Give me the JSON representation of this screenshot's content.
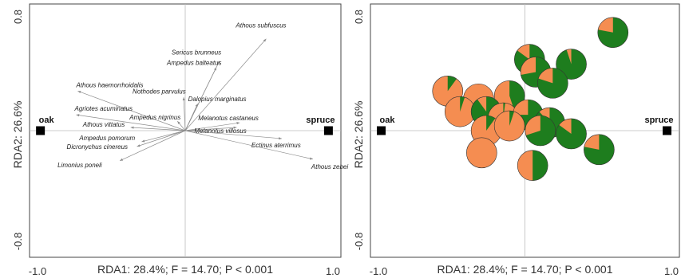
{
  "colors": {
    "oak": "#F58D51",
    "spruce": "#1E7D1E",
    "frame": "#444444",
    "ref": "#BDBDBD",
    "arrow": "#8C8C8C"
  },
  "chart_data": [
    {
      "type": "scatter",
      "subtype": "rda-biplot",
      "xlabel": "RDA1: 28.4%; F = 14.70; P < 0.001",
      "ylabel": "RDA2: 26.6%",
      "xlim": [
        -1.0,
        1.0
      ],
      "ylim": [
        -0.8,
        0.8
      ],
      "x_ticks": [
        "-1.0",
        "1.0"
      ],
      "y_ticks": [
        "0.8",
        "-0.8"
      ],
      "centroids": [
        {
          "name": "oak",
          "x": -0.93,
          "y": 0.0
        },
        {
          "name": "spruce",
          "x": 0.92,
          "y": 0.0
        }
      ],
      "species": [
        {
          "name": "Athous subfuscus",
          "x": 0.52,
          "y": 0.58
        },
        {
          "name": "Sericus brunneus",
          "x": 0.22,
          "y": 0.44
        },
        {
          "name": "Ampedus balteatus",
          "x": 0.2,
          "y": 0.4
        },
        {
          "name": "Athous haemorrhoidalis",
          "x": -0.69,
          "y": 0.25
        },
        {
          "name": "Nothodes parvulus",
          "x": -0.01,
          "y": 0.21
        },
        {
          "name": "Dalopius marginatus",
          "x": 0.08,
          "y": 0.17
        },
        {
          "name": "Agriotes acuminatus",
          "x": -0.7,
          "y": 0.1
        },
        {
          "name": "Ampedus nigrinus",
          "x": -0.05,
          "y": 0.06
        },
        {
          "name": "Melanotus castaneus",
          "x": 0.35,
          "y": 0.05
        },
        {
          "name": "Athous vittatus",
          "x": -0.35,
          "y": 0.02
        },
        {
          "name": "Melanotus villosus",
          "x": 0.33,
          "y": 0.02
        },
        {
          "name": "Ectinus aterrimus",
          "x": 0.62,
          "y": -0.05
        },
        {
          "name": "Ampedus pomorum",
          "x": -0.28,
          "y": -0.07
        },
        {
          "name": "Dicronychus cinereus",
          "x": -0.31,
          "y": -0.1
        },
        {
          "name": "Athous zebei",
          "x": 0.82,
          "y": -0.18
        },
        {
          "name": "Limonius poneli",
          "x": -0.42,
          "y": -0.19
        }
      ]
    },
    {
      "type": "scatter",
      "subtype": "rda-site-pies",
      "xlabel": "RDA1: 28.4%; F = 14.70; P < 0.001",
      "ylabel": "RDA2: 26.6%",
      "xlim": [
        -1.0,
        1.0
      ],
      "ylim": [
        -0.8,
        0.8
      ],
      "x_ticks": [
        "-1.0",
        "1.0"
      ],
      "y_ticks": [
        "0.8",
        "-0.8"
      ],
      "centroids": [
        {
          "name": "oak",
          "x": -0.93,
          "y": 0.0
        },
        {
          "name": "spruce",
          "x": 0.92,
          "y": 0.0
        }
      ],
      "pie_series": [
        "oak",
        "spruce"
      ],
      "sites": [
        {
          "x": 0.57,
          "y": 0.62,
          "spruce": 0.78
        },
        {
          "x": 0.03,
          "y": 0.45,
          "spruce": 0.85
        },
        {
          "x": 0.07,
          "y": 0.37,
          "spruce": 0.72
        },
        {
          "x": 0.3,
          "y": 0.42,
          "spruce": 0.95
        },
        {
          "x": 0.18,
          "y": 0.3,
          "spruce": 0.8
        },
        {
          "x": -0.5,
          "y": 0.25,
          "spruce": 0.1
        },
        {
          "x": -0.3,
          "y": 0.2,
          "spruce": 0.0
        },
        {
          "x": -0.1,
          "y": 0.22,
          "spruce": 0.45
        },
        {
          "x": -0.42,
          "y": 0.12,
          "spruce": 0.05
        },
        {
          "x": -0.25,
          "y": 0.12,
          "spruce": 0.9
        },
        {
          "x": -0.14,
          "y": 0.08,
          "spruce": 0.02
        },
        {
          "x": 0.02,
          "y": 0.1,
          "spruce": 0.75
        },
        {
          "x": 0.16,
          "y": 0.05,
          "spruce": 0.88
        },
        {
          "x": -0.25,
          "y": 0.0,
          "spruce": 0.1
        },
        {
          "x": -0.1,
          "y": 0.03,
          "spruce": 0.05
        },
        {
          "x": 0.1,
          "y": 0.0,
          "spruce": 0.7
        },
        {
          "x": 0.3,
          "y": -0.02,
          "spruce": 0.85
        },
        {
          "x": -0.28,
          "y": -0.14,
          "spruce": 0.0
        },
        {
          "x": 0.05,
          "y": -0.22,
          "spruce": 0.5
        },
        {
          "x": 0.48,
          "y": -0.12,
          "spruce": 0.78
        }
      ]
    }
  ]
}
